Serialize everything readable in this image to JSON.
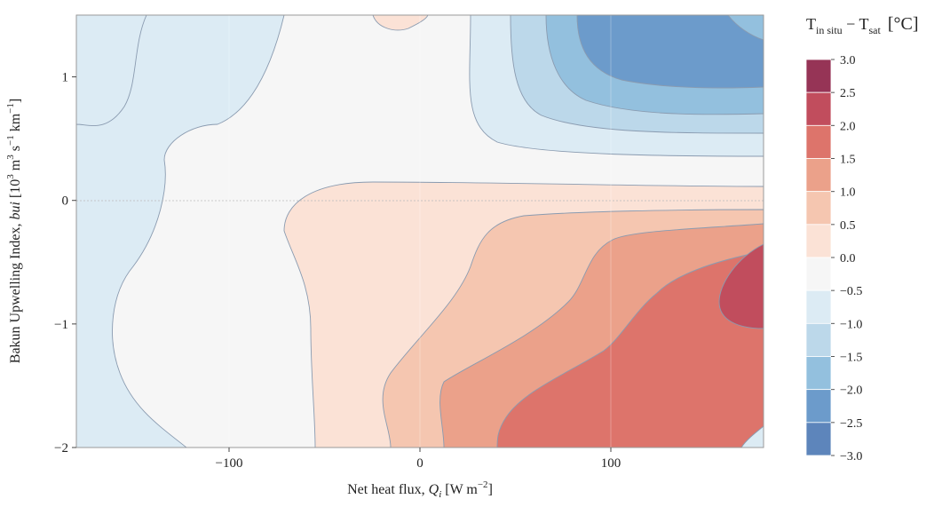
{
  "chart_data": {
    "type": "filled-contour",
    "x_variable": "Qi",
    "y_variable": "bui",
    "z_variable": "Tin situ - Tsat",
    "xlabel": {
      "main": "Net heat flux, ",
      "symbol": "Q",
      "sub": "i",
      "unit_pre": " [W m",
      "unit_sup": "−2",
      "unit_post": "]"
    },
    "ylabel": {
      "main": "Bakun Upwelling Index, ",
      "symbol": "bui",
      "unit": " [10",
      "s1": "3",
      "u2": " m",
      "s2": "3",
      "u3": " s",
      "s3": "−1",
      "u4": " km",
      "s4": "−1",
      "u5": "]"
    },
    "colorbar_title": {
      "T": "T",
      "sub1": "in situ",
      "dash": " − T",
      "sub2": "sat",
      "unit": "[°C]"
    },
    "xlim": [
      -180,
      180
    ],
    "ylim": [
      -2,
      1.5
    ],
    "x_ticks": [
      -100,
      0,
      100
    ],
    "x_tick_labels": [
      "−100",
      "0",
      "100"
    ],
    "y_ticks": [
      1,
      0,
      -1,
      -2
    ],
    "y_tick_labels": [
      "1",
      "0",
      "−1",
      "−2"
    ],
    "levels": [
      -3.0,
      -2.5,
      -2.0,
      -1.5,
      -1.0,
      -0.5,
      0.0,
      0.5,
      1.0,
      1.5,
      2.0,
      2.5,
      3.0
    ],
    "level_labels": [
      "3.0",
      "2.5",
      "2.0",
      "1.5",
      "1.0",
      "0.5",
      "0.0",
      "−0.5",
      "−1.0",
      "−1.5",
      "−2.0",
      "−2.5",
      "−3.0"
    ],
    "band_colors": [
      "#5d85bb",
      "#6c9bcb",
      "#93c0de",
      "#bcd8ea",
      "#dcebf4",
      "#f6f6f6",
      "#fbe2d6",
      "#f5c6b0",
      "#eba18a",
      "#dd746b",
      "#c14d5d",
      "#963456"
    ],
    "zero_line": true,
    "grid": true,
    "colorbar_position": "right",
    "regions": [
      {
        "level_band": "-0.5 to 0.0",
        "area": "left strip and upper-left",
        "color_index": 4
      },
      {
        "level_band": "0.0 to 0.5",
        "area": "center",
        "color_index": 5
      },
      {
        "level_band": "-3.0 to -0.5",
        "area": "upper-right",
        "color_index": 0
      },
      {
        "level_band": "0.0 to 2.5",
        "area": "lower-right",
        "color_index": 10
      }
    ]
  }
}
